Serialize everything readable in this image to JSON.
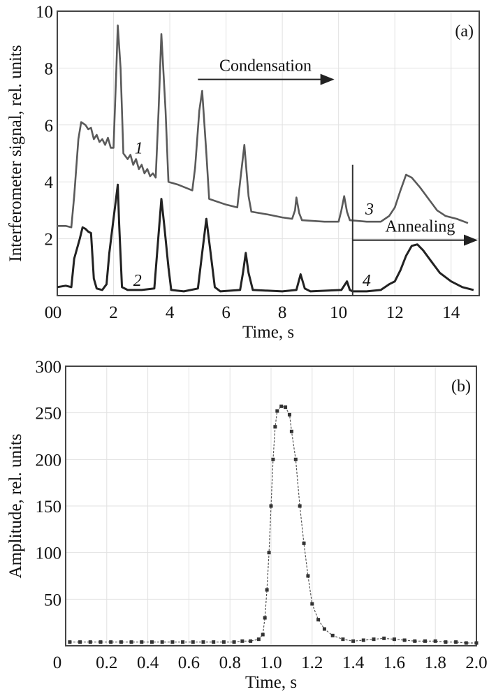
{
  "chart_data": [
    {
      "type": "line",
      "panel_label": "(a)",
      "xlabel": "Time, s",
      "ylabel": "Interferometer signal, rel. units",
      "xlim": [
        0,
        15
      ],
      "ylim": [
        0,
        10
      ],
      "xticks": [
        "0",
        "2",
        "4",
        "6",
        "8",
        "10",
        "12",
        "14"
      ],
      "xtick_values": [
        0,
        2,
        4,
        6,
        8,
        10,
        12,
        14
      ],
      "yticks": [
        "2",
        "4",
        "6",
        "8",
        "10"
      ],
      "ytick_values": [
        2,
        4,
        6,
        8,
        10
      ],
      "grid": true,
      "series": [
        {
          "name": "1",
          "color": "#5a5a5a",
          "x": [
            0,
            0.3,
            0.5,
            0.6,
            0.75,
            0.85,
            1.0,
            1.1,
            1.2,
            1.3,
            1.4,
            1.5,
            1.6,
            1.7,
            1.8,
            1.9,
            2.0,
            2.1,
            2.15,
            2.25,
            2.35,
            2.5,
            2.6,
            2.7,
            2.8,
            2.9,
            3.0,
            3.1,
            3.2,
            3.3,
            3.4,
            3.5,
            3.6,
            3.7,
            3.85,
            3.95,
            4.3,
            4.8,
            4.9,
            5.05,
            5.15,
            5.3,
            5.4,
            6.0,
            6.4,
            6.5,
            6.65,
            6.8,
            6.9,
            7.5,
            8.0,
            8.35,
            8.45,
            8.5,
            8.6,
            8.7,
            9.5,
            10.0,
            10.1,
            10.2,
            10.3,
            10.4,
            11.0,
            11.5,
            11.8,
            12.0,
            12.2,
            12.4,
            12.6,
            12.9,
            13.2,
            13.5,
            13.8,
            14.2,
            14.6
          ],
          "y": [
            2.45,
            2.45,
            2.4,
            3.5,
            5.5,
            6.1,
            6.0,
            5.85,
            5.9,
            5.5,
            5.65,
            5.4,
            5.5,
            5.3,
            5.55,
            5.2,
            5.2,
            8.0,
            9.5,
            8.0,
            5.0,
            4.8,
            4.95,
            4.6,
            4.8,
            4.45,
            4.6,
            4.3,
            4.45,
            4.2,
            4.3,
            4.15,
            6.5,
            9.2,
            6.5,
            4.0,
            3.9,
            3.7,
            4.5,
            6.5,
            7.2,
            5.0,
            3.4,
            3.2,
            3.1,
            4.0,
            5.3,
            3.5,
            2.95,
            2.85,
            2.75,
            2.7,
            3.0,
            3.45,
            2.9,
            2.65,
            2.6,
            2.6,
            3.0,
            3.5,
            2.95,
            2.65,
            2.6,
            2.6,
            2.8,
            3.1,
            3.7,
            4.25,
            4.15,
            3.8,
            3.4,
            3.0,
            2.8,
            2.7,
            2.55
          ]
        },
        {
          "name": "2",
          "color": "#222222",
          "x": [
            0,
            0.3,
            0.5,
            0.6,
            0.8,
            0.9,
            1.0,
            1.1,
            1.2,
            1.3,
            1.4,
            1.6,
            1.75,
            1.85,
            2.0,
            2.1,
            2.15,
            2.2,
            2.3,
            2.5,
            3.0,
            3.45,
            3.55,
            3.7,
            3.8,
            3.95,
            4.05,
            4.5,
            5.0,
            5.15,
            5.3,
            5.45,
            5.6,
            5.8,
            6.5,
            6.6,
            6.7,
            6.8,
            6.95,
            8.0,
            8.5,
            8.65,
            8.8,
            9.0,
            10.1,
            10.3,
            10.4,
            10.5,
            11.0,
            11.5,
            11.8,
            12.0,
            12.2,
            12.4,
            12.6,
            12.8,
            13.0,
            13.3,
            13.6,
            14.0,
            14.4,
            14.8
          ],
          "y": [
            0.3,
            0.35,
            0.3,
            1.3,
            2.0,
            2.4,
            2.35,
            2.25,
            2.2,
            0.6,
            0.25,
            0.2,
            0.4,
            1.5,
            2.7,
            3.5,
            3.9,
            2.5,
            0.3,
            0.2,
            0.2,
            0.25,
            1.5,
            3.4,
            2.5,
            1.0,
            0.2,
            0.15,
            0.25,
            1.5,
            2.7,
            1.5,
            0.3,
            0.15,
            0.2,
            0.8,
            1.5,
            0.8,
            0.2,
            0.15,
            0.2,
            0.75,
            0.25,
            0.15,
            0.2,
            0.5,
            0.2,
            0.15,
            0.15,
            0.2,
            0.4,
            0.5,
            0.9,
            1.4,
            1.75,
            1.8,
            1.6,
            1.2,
            0.8,
            0.5,
            0.3,
            0.2
          ]
        }
      ],
      "curve_labels": [
        {
          "text": "1",
          "x": 2.9,
          "y": 5.0
        },
        {
          "text": "2",
          "x": 2.85,
          "y": 0.35
        },
        {
          "text": "3",
          "x": 11.1,
          "y": 2.85
        },
        {
          "text": "4",
          "x": 11.0,
          "y": 0.35
        }
      ],
      "vline_x": 10.5,
      "vline_ytop": 4.6,
      "annotations": [
        {
          "text": "Condensation",
          "arrow_from": 5.0,
          "arrow_to": 9.8,
          "arrow_y": 7.6
        },
        {
          "text": "Annealing",
          "arrow_from": 10.5,
          "arrow_to": 14.9,
          "arrow_y": 1.95
        }
      ],
      "origin_label": "0"
    },
    {
      "type": "scatter",
      "panel_label": "(b)",
      "xlabel": "Time, s",
      "ylabel": "Amplitude, rel. units",
      "xlim": [
        0,
        2.0
      ],
      "ylim": [
        0,
        300
      ],
      "xticks": [
        "0.2",
        "0.4",
        "0.6",
        "0.8",
        "1.0",
        "1.2",
        "1.4",
        "1.6",
        "1.8",
        "2.0"
      ],
      "xtick_values": [
        0.2,
        0.4,
        0.6,
        0.8,
        1.0,
        1.2,
        1.4,
        1.6,
        1.8,
        2.0
      ],
      "yticks": [
        "50",
        "100",
        "150",
        "200",
        "250",
        "300"
      ],
      "ytick_values": [
        50,
        100,
        150,
        200,
        250,
        300
      ],
      "origin_label": "0",
      "grid": true,
      "series": [
        {
          "name": "amplitude",
          "color": "#333333",
          "x": [
            0.02,
            0.07,
            0.12,
            0.17,
            0.22,
            0.27,
            0.32,
            0.37,
            0.42,
            0.47,
            0.52,
            0.57,
            0.62,
            0.67,
            0.72,
            0.77,
            0.82,
            0.86,
            0.9,
            0.94,
            0.96,
            0.97,
            0.98,
            0.99,
            1.0,
            1.01,
            1.02,
            1.03,
            1.05,
            1.07,
            1.09,
            1.1,
            1.12,
            1.14,
            1.16,
            1.18,
            1.2,
            1.23,
            1.26,
            1.3,
            1.35,
            1.4,
            1.45,
            1.5,
            1.55,
            1.6,
            1.65,
            1.7,
            1.75,
            1.8,
            1.85,
            1.9,
            1.95,
            2.0
          ],
          "y": [
            4,
            4,
            4,
            4,
            4,
            4,
            4,
            4,
            4,
            4,
            4,
            4,
            4,
            4,
            4,
            4,
            4,
            5,
            5,
            7,
            12,
            30,
            60,
            100,
            150,
            200,
            235,
            252,
            257,
            256,
            248,
            230,
            200,
            150,
            110,
            75,
            45,
            28,
            18,
            11,
            7,
            5,
            6,
            7,
            8,
            7,
            6,
            5,
            5,
            5,
            4,
            4,
            3,
            3
          ]
        }
      ]
    }
  ]
}
